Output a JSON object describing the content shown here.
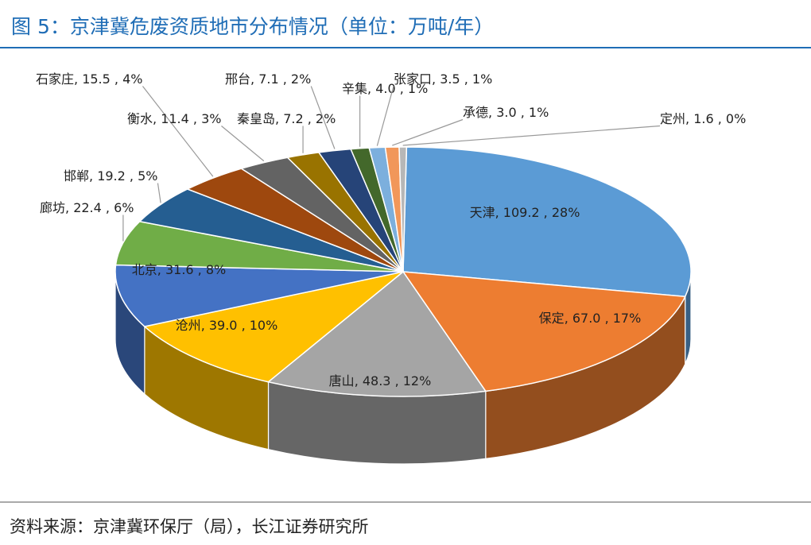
{
  "chart_data": {
    "type": "pie3d",
    "title": "图 5：京津冀危废资质地市分布情况（单位：万吨/年）",
    "source": "资料来源：京津冀环保厅（局），长江证券研究所",
    "categories": [
      "天津",
      "保定",
      "唐山",
      "沧州",
      "北京",
      "廊坊",
      "邯郸",
      "石家庄",
      "衡水",
      "秦皇岛",
      "邢台",
      "辛集",
      "张家口",
      "承德",
      "定州"
    ],
    "values": [
      109.2,
      67.0,
      48.3,
      39.0,
      31.6,
      22.4,
      19.2,
      15.5,
      11.4,
      7.2,
      7.1,
      4.0,
      3.5,
      3.0,
      1.6
    ],
    "value_labels": [
      ", 109.2 , 28%",
      ", 67.0 , 17%",
      ", 48.3 , 12%",
      ", 39.0 , 10%",
      ", 31.6 , 8%",
      ", 22.4 , 6%",
      ", 19.2 , 5%",
      ", 15.5 , 4%",
      ", 11.4 , 3%",
      ", 7.2 , 2%",
      ", 7.1 , 2%",
      ", 4.0 , 1%",
      ", 3.5 , 1%",
      ", 3.0 , 1%",
      ", 1.6 , 0%"
    ],
    "colors": [
      "#5b9bd5",
      "#ed7d31",
      "#a5a5a5",
      "#ffc000",
      "#4472c4",
      "#70ad47",
      "#255e91",
      "#9e480e",
      "#636363",
      "#997300",
      "#264478",
      "#43682b",
      "#7cafdd",
      "#f1975a",
      "#b7b7b7"
    ]
  }
}
